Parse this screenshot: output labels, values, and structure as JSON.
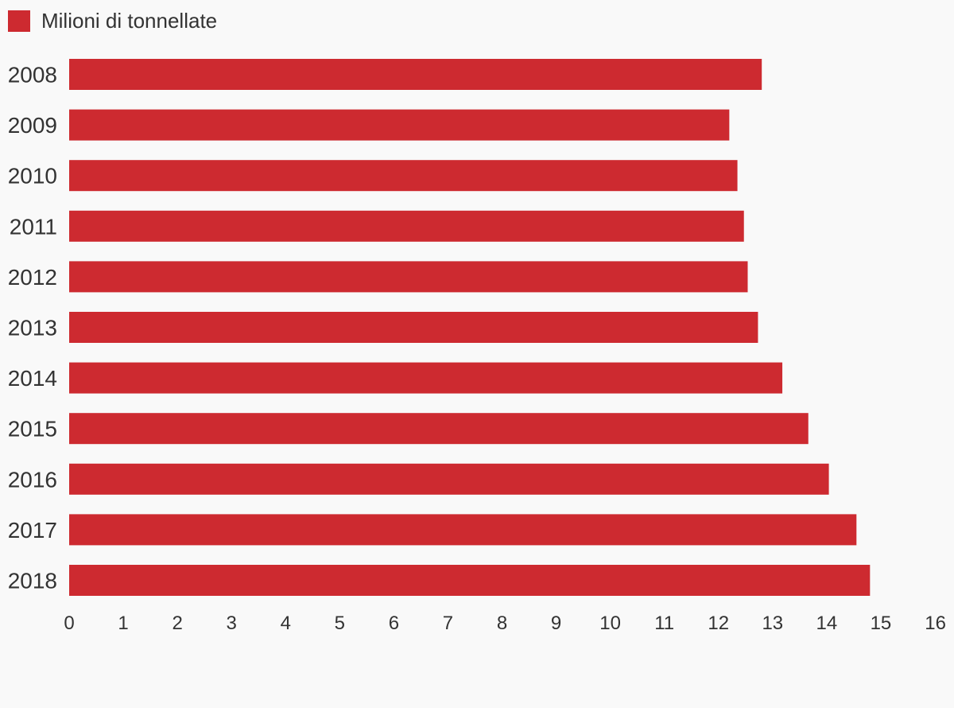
{
  "chart_data": {
    "type": "bar",
    "orientation": "horizontal",
    "categories": [
      "2008",
      "2009",
      "2010",
      "2011",
      "2012",
      "2013",
      "2014",
      "2015",
      "2016",
      "2017",
      "2018"
    ],
    "series": [
      {
        "name": "Milioni di tonnellate",
        "color": "#cd2a30",
        "values": [
          12.8,
          12.2,
          12.35,
          12.47,
          12.54,
          12.73,
          13.18,
          13.66,
          14.04,
          14.55,
          14.8
        ]
      }
    ],
    "xlim": [
      0,
      16
    ],
    "xticks": [
      "0",
      "1",
      "2",
      "3",
      "4",
      "5",
      "6",
      "7",
      "8",
      "9",
      "10",
      "11",
      "12",
      "13",
      "14",
      "15",
      "16"
    ],
    "grid": false,
    "legend_position": "top-left"
  }
}
